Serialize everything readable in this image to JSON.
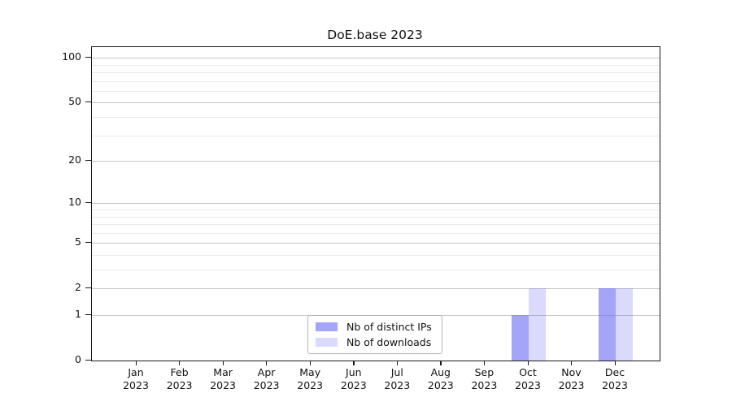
{
  "chart_data": {
    "type": "bar",
    "title": "DoE.base 2023",
    "categories": [
      "Jan 2023",
      "Feb 2023",
      "Mar 2023",
      "Apr 2023",
      "May 2023",
      "Jun 2023",
      "Jul 2023",
      "Aug 2023",
      "Sep 2023",
      "Oct 2023",
      "Nov 2023",
      "Dec 2023"
    ],
    "x_ticks": [
      [
        "Jan",
        "2023"
      ],
      [
        "Feb",
        "2023"
      ],
      [
        "Mar",
        "2023"
      ],
      [
        "Apr",
        "2023"
      ],
      [
        "May",
        "2023"
      ],
      [
        "Jun",
        "2023"
      ],
      [
        "Jul",
        "2023"
      ],
      [
        "Aug",
        "2023"
      ],
      [
        "Sep",
        "2023"
      ],
      [
        "Oct",
        "2023"
      ],
      [
        "Nov",
        "2023"
      ],
      [
        "Dec",
        "2023"
      ]
    ],
    "series": [
      {
        "name": "Nb of distinct IPs",
        "color": "rgba(108,108,243,0.62)",
        "values": [
          0,
          0,
          0,
          0,
          0,
          0,
          0,
          0,
          0,
          1,
          0,
          2
        ]
      },
      {
        "name": "Nb of downloads",
        "color": "rgba(108,108,243,0.25)",
        "values": [
          0,
          0,
          0,
          0,
          0,
          0,
          0,
          0,
          0,
          2,
          0,
          2
        ]
      }
    ],
    "yscale": "log1p",
    "yticks": [
      0,
      1,
      2,
      5,
      10,
      20,
      50,
      100
    ],
    "minor_yticks": [
      3,
      4,
      6,
      7,
      8,
      9,
      30,
      40,
      60,
      70,
      80,
      90
    ],
    "ylim": [
      0,
      118
    ],
    "xlabel": "",
    "ylabel": "",
    "grid": "horizontal",
    "legend": {
      "position": "lower center"
    },
    "colors": {
      "major_grid": "#c6c6c6",
      "minor_grid": "#ebebeb",
      "spine": "#1a1a1a",
      "legend_border": "#b4b4b4"
    }
  }
}
